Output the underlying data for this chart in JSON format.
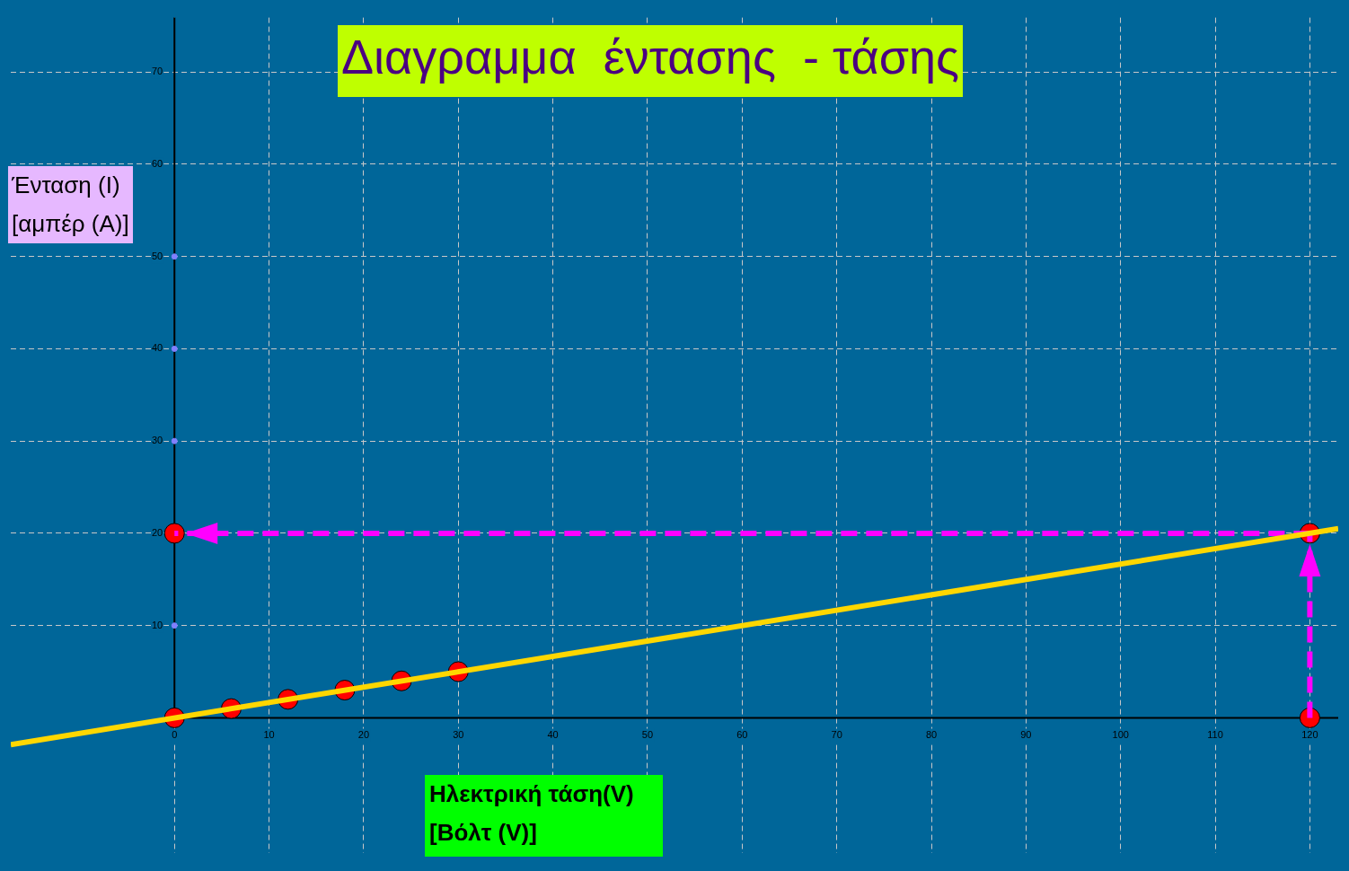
{
  "chart_data": {
    "type": "scatter",
    "title": "Διαγραμμα  έντασης  - τάσης",
    "xlabel": "Ηλεκτρική τάση(V)\n[Βόλτ (V)]",
    "ylabel": "Ένταση (I)\n[αμπέρ (Α)]",
    "xlim": [
      -17.3,
      123
    ],
    "ylim": [
      -14.7,
      75.9
    ],
    "xticks": [
      0,
      10,
      20,
      30,
      40,
      50,
      60,
      70,
      80,
      90,
      100,
      110,
      120
    ],
    "yticks": [
      10,
      20,
      30,
      40,
      50,
      60,
      70
    ],
    "grid": true,
    "legend": false,
    "series": [
      {
        "type": "line",
        "x": [
          -17.3,
          123
        ],
        "values": [
          -2.9,
          20.5
        ],
        "color": "#ffd700",
        "marker": "none"
      },
      {
        "type": "line",
        "x": [
          120,
          120
        ],
        "values": [
          0,
          20
        ],
        "color": "#ff00ff",
        "line_style": "dashed",
        "marker": "none"
      },
      {
        "type": "line",
        "x": [
          120,
          0
        ],
        "values": [
          20,
          20
        ],
        "color": "#ff00ff",
        "line_style": "dashed",
        "marker": "none"
      },
      {
        "x": [
          0,
          6,
          12,
          18,
          24,
          30,
          120,
          120,
          0
        ],
        "values": [
          0,
          1,
          2,
          3,
          4,
          5,
          0,
          20,
          20
        ],
        "color": "#ff0000",
        "marker": "circle"
      },
      {
        "x": [
          0,
          0,
          0,
          0
        ],
        "values": [
          10,
          30,
          40,
          50
        ],
        "color": "#8080ff",
        "marker": "circle"
      }
    ]
  }
}
